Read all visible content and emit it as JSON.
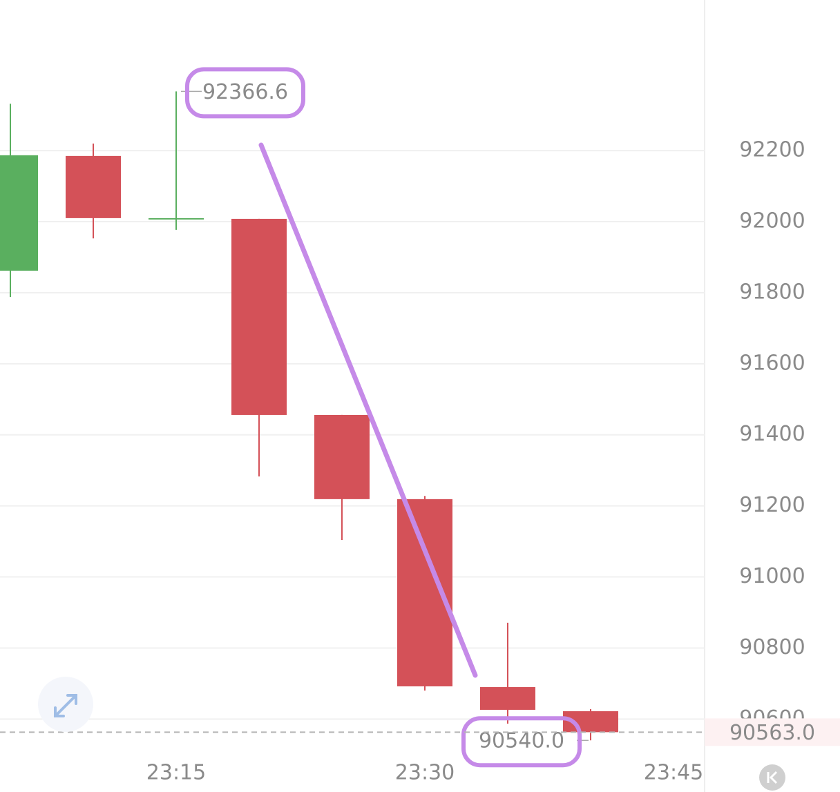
{
  "chart_data": {
    "type": "candlestick",
    "categories": [
      null,
      null,
      "23:15",
      null,
      null,
      "23:30",
      null,
      null,
      "23:45"
    ],
    "open": [
      91862,
      92185,
      92010,
      92008,
      91456,
      91219,
      90690,
      90622,
      null
    ],
    "high": [
      92332,
      92220,
      92366.6,
      92008,
      91456,
      91228,
      90871,
      90628,
      null
    ],
    "low": [
      91788,
      91953,
      91977,
      91283,
      91104,
      90680,
      90587,
      90540,
      null
    ],
    "close": [
      92187,
      92010,
      92010,
      91456,
      91219,
      90692,
      90626,
      90563,
      null
    ],
    "up_color": "#5aaf5f",
    "down_color": "#d45158",
    "ylim": [
      90486,
      92624
    ],
    "yticks": [
      90600,
      90800,
      91000,
      91200,
      91400,
      91600,
      91800,
      92000,
      92200
    ],
    "grid": true,
    "max_label": {
      "value": 92366.6,
      "label": "92366.6"
    },
    "min_label": {
      "value": 90540,
      "label": "90540.0"
    },
    "last_price": {
      "value": 90563,
      "label": "90563.0"
    }
  }
}
